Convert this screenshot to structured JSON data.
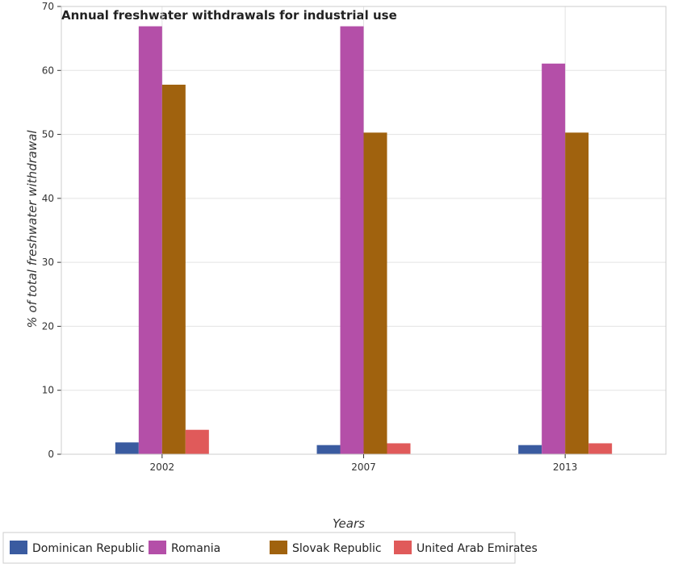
{
  "chart_data": {
    "type": "bar",
    "title": "Annual freshwater withdrawals for industrial use",
    "xlabel": "Years",
    "ylabel": "% of total freshwater withdrawal",
    "categories": [
      "2002",
      "2007",
      "2013"
    ],
    "ylim": [
      0,
      70
    ],
    "yticks": [
      0,
      10,
      20,
      30,
      40,
      50,
      60,
      70
    ],
    "grid": true,
    "legend_position": "bottom-left",
    "series": [
      {
        "name": "Dominican Republic",
        "color": "#3a5ba0",
        "values": [
          1.85,
          1.43,
          1.43
        ]
      },
      {
        "name": "Romania",
        "color": "#b44fa8",
        "values": [
          66.9,
          66.9,
          61.07
        ]
      },
      {
        "name": "Slovak Republic",
        "color": "#a0620e",
        "values": [
          57.77,
          50.28,
          50.28
        ]
      },
      {
        "name": "United Arab Emirates",
        "color": "#e05a5a",
        "values": [
          3.82,
          1.71,
          1.71
        ]
      }
    ]
  }
}
